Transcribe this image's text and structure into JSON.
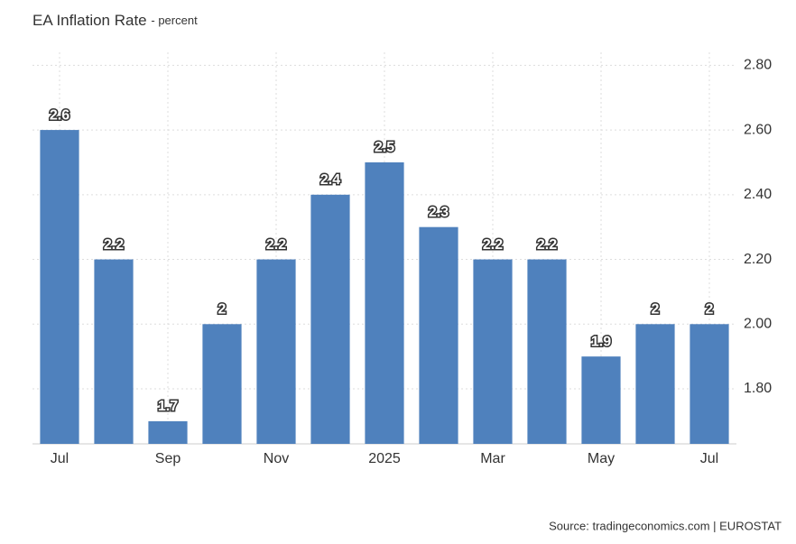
{
  "chart_data": {
    "type": "bar",
    "title": "EA Inflation Rate",
    "subtitle": "- percent",
    "source": "Source: tradingeconomics.com | EUROSTAT",
    "categories": [
      "Jul",
      null,
      "Sep",
      null,
      "Nov",
      null,
      "2025",
      null,
      "Mar",
      null,
      "May",
      null,
      "Jul"
    ],
    "values": [
      2.6,
      2.2,
      1.7,
      2,
      2.2,
      2.4,
      2.5,
      2.3,
      2.2,
      2.2,
      1.9,
      2,
      2
    ],
    "color": "#4f81bd",
    "ylim": [
      1.63,
      2.84
    ],
    "yticks": [
      {
        "value": 1.8,
        "label": "1.80"
      },
      {
        "value": 2,
        "label": "2.00"
      },
      {
        "value": 2.2,
        "label": "2.20"
      },
      {
        "value": 2.4,
        "label": "2.40"
      },
      {
        "value": 2.6,
        "label": "2.60"
      },
      {
        "value": 2.8,
        "label": "2.80"
      }
    ],
    "grid": true
  }
}
